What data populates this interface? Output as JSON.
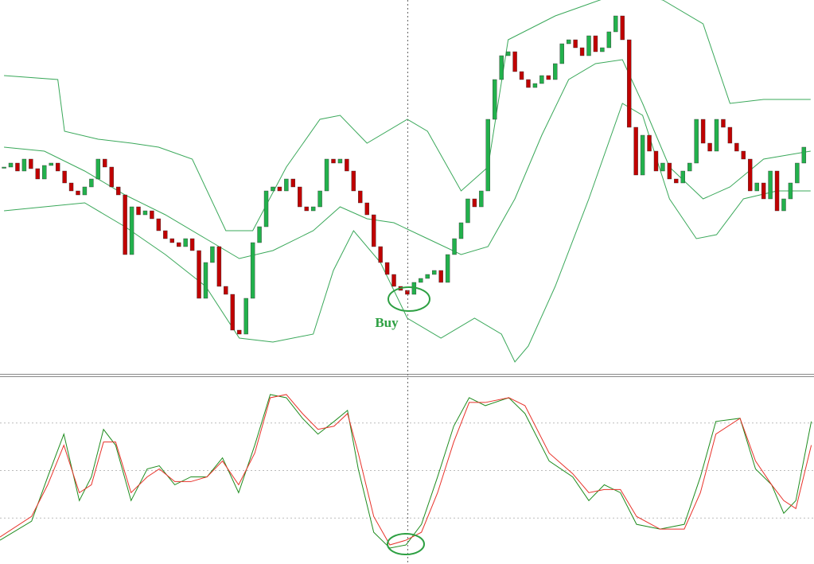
{
  "chart_data": [
    {
      "type": "candlestick",
      "xlim": [
        -0.6,
        120.5
      ],
      "ylim": [
        0,
        470
      ],
      "up_color": "#22b14c",
      "down_color": "#c00000",
      "close": [
        260,
        265,
        255,
        270,
        258,
        245,
        262,
        265,
        255,
        240,
        230,
        225,
        235,
        245,
        270,
        260,
        235,
        225,
        150,
        210,
        200,
        205,
        195,
        180,
        170,
        165,
        160,
        170,
        155,
        95,
        140,
        160,
        110,
        100,
        55,
        50,
        95,
        165,
        185,
        230,
        235,
        230,
        245,
        235,
        210,
        205,
        210,
        230,
        270,
        265,
        270,
        255,
        230,
        215,
        200,
        160,
        140,
        125,
        110,
        105,
        100,
        115,
        120,
        125,
        130,
        115,
        150,
        170,
        190,
        220,
        210,
        230,
        320,
        370,
        400,
        405,
        380,
        370,
        360,
        365,
        375,
        370,
        390,
        415,
        420,
        410,
        400,
        425,
        405,
        410,
        430,
        450,
        420,
        310,
        250,
        300,
        280,
        255,
        265,
        245,
        240,
        255,
        265,
        320,
        290,
        280,
        320,
        310,
        290,
        280,
        270,
        230,
        240,
        220,
        255,
        205,
        220,
        240,
        265,
        285
      ],
      "band_color": "#3aa85a",
      "bands": [
        {
          "x": [
            0,
            8,
            9,
            14,
            19,
            23,
            28,
            33,
            37,
            42,
            47,
            50,
            54,
            60,
            63,
            68,
            72,
            75,
            82,
            87,
            92,
            98,
            104,
            108,
            113,
            120
          ],
          "values": [
            375,
            370,
            305,
            295,
            290,
            285,
            270,
            180,
            180,
            260,
            320,
            325,
            290,
            320,
            305,
            230,
            260,
            420,
            450,
            465,
            480,
            470,
            440,
            340,
            345,
            345
          ]
        },
        {
          "x": [
            0,
            6,
            12,
            18,
            24,
            30,
            35,
            40,
            46,
            50,
            54,
            58,
            63,
            68,
            72,
            76,
            80,
            84,
            88,
            92,
            95,
            99,
            104,
            108,
            113,
            120
          ],
          "values": [
            285,
            280,
            255,
            225,
            200,
            170,
            145,
            155,
            180,
            210,
            195,
            190,
            170,
            150,
            160,
            220,
            300,
            370,
            390,
            395,
            340,
            260,
            220,
            235,
            270,
            280
          ]
        },
        {
          "x": [
            0,
            6,
            12,
            18,
            24,
            30,
            35,
            40,
            46,
            49,
            52,
            56,
            60,
            65,
            70,
            74,
            76,
            78,
            82,
            87,
            92,
            95,
            99,
            103,
            106,
            110,
            115,
            120
          ],
          "values": [
            205,
            210,
            215,
            185,
            150,
            110,
            45,
            40,
            50,
            130,
            180,
            140,
            70,
            45,
            70,
            50,
            15,
            35,
            110,
            220,
            340,
            325,
            220,
            170,
            175,
            220,
            230,
            230
          ]
        }
      ],
      "annotation": "Buy",
      "annotation_color": "#2ea043"
    },
    {
      "type": "line",
      "xlim": [
        -0.6,
        120.5
      ],
      "ylim": [
        0,
        100
      ],
      "yticks": [
        20,
        50,
        80
      ],
      "grid": true,
      "x": [
        -0.6,
        4.1,
        6.5,
        8.9,
        11.2,
        13,
        14.8,
        16.6,
        18.9,
        21.3,
        23.1,
        25.4,
        27.8,
        30.2,
        32.5,
        34.9,
        37.3,
        39.6,
        42,
        44.4,
        46.7,
        49.1,
        51.1,
        52.7,
        55,
        57.4,
        59.8,
        62.1,
        64.5,
        66.9,
        69.2,
        71.6,
        75.1,
        77.5,
        81.1,
        84.6,
        87,
        89.3,
        91.7,
        94.1,
        97.6,
        101.2,
        103.6,
        105.9,
        109.5,
        111.8,
        114.2,
        116,
        117.8,
        120.1
      ],
      "series": [
        {
          "color": "#1e8c1e",
          "values": [
            6,
            18,
            46,
            73,
            31,
            46,
            76,
            66,
            31,
            51,
            53,
            41,
            46,
            46,
            58,
            36,
            66,
            98,
            96,
            83,
            73,
            81,
            88,
            51,
            11,
            1,
            3,
            16,
            46,
            78,
            96,
            91,
            96,
            86,
            56,
            46,
            31,
            41,
            36,
            16,
            13,
            16,
            46,
            81,
            83,
            51,
            41,
            23,
            31,
            81
          ]
        },
        {
          "color": "#e8322a",
          "values": [
            8,
            21,
            41,
            66,
            36,
            41,
            68,
            68,
            36,
            46,
            51,
            43,
            43,
            46,
            56,
            41,
            61,
            96,
            98,
            86,
            76,
            78,
            86,
            61,
            21,
            3,
            6,
            11,
            36,
            68,
            93,
            93,
            96,
            91,
            61,
            48,
            36,
            38,
            38,
            21,
            13,
            13,
            36,
            73,
            83,
            56,
            41,
            31,
            26,
            66
          ]
        }
      ]
    }
  ]
}
